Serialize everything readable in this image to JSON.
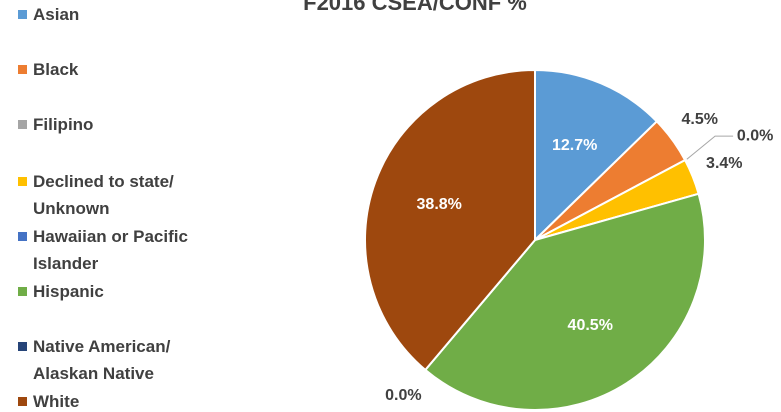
{
  "chart_data": {
    "type": "pie",
    "title": "F2016 CSEA/CONF %",
    "categories": [
      "Asian",
      "Black",
      "Filipino",
      "Declined to state/ Unknown",
      "Hawaiian or Pacific Islander",
      "Hispanic",
      "Native American/ Alaskan Native",
      "White"
    ],
    "values": [
      12.7,
      4.5,
      0.0,
      3.4,
      0,
      40.5,
      0.0,
      38.8
    ],
    "value_labels": [
      "12.7%",
      "4.5%",
      "0.0%",
      "3.4%",
      null,
      "40.5%",
      "0.0%",
      "38.8%"
    ],
    "colors": [
      "#5b9bd5",
      "#ed7d31",
      "#a5a5a5",
      "#ffc000",
      "#4472c4",
      "#70ad47",
      "#264478",
      "#9e480e"
    ],
    "legend": "left"
  }
}
